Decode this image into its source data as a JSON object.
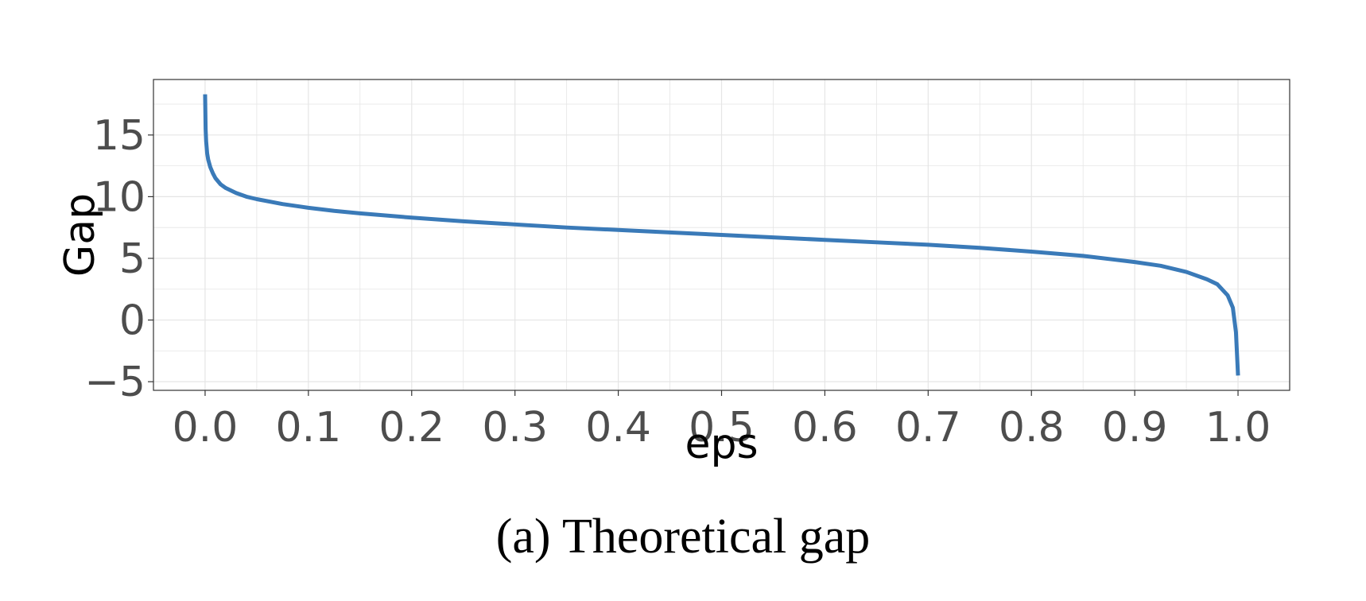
{
  "caption": "(a) Theoretical gap",
  "chart_data": {
    "type": "line",
    "xlabel": "eps",
    "ylabel": "Gap",
    "xlim": [
      -0.05,
      1.05
    ],
    "ylim": [
      -5.7,
      19.5
    ],
    "x_ticks": [
      0.0,
      0.1,
      0.2,
      0.3,
      0.4,
      0.5,
      0.6,
      0.7,
      0.8,
      0.9,
      1.0
    ],
    "x_tick_labels": [
      "0.0",
      "0.1",
      "0.2",
      "0.3",
      "0.4",
      "0.5",
      "0.6",
      "0.7",
      "0.8",
      "0.9",
      "1.0"
    ],
    "y_ticks": [
      -5,
      0,
      5,
      10,
      15
    ],
    "y_tick_labels": [
      "−5",
      "0",
      "5",
      "10",
      "15"
    ],
    "grid": true,
    "colors": {
      "line": "#3a7ab8",
      "grid": "#e5e5e5",
      "panel_border": "#333333"
    },
    "series": [
      {
        "x": [
          0.0,
          0.0005,
          0.001,
          0.002,
          0.003,
          0.005,
          0.0075,
          0.01,
          0.015,
          0.02,
          0.03,
          0.04,
          0.05,
          0.075,
          0.1,
          0.125,
          0.15,
          0.2,
          0.25,
          0.3,
          0.35,
          0.4,
          0.45,
          0.5,
          0.55,
          0.6,
          0.65,
          0.7,
          0.75,
          0.8,
          0.85,
          0.9,
          0.925,
          0.95,
          0.97,
          0.98,
          0.99,
          0.995,
          0.998,
          1.0
        ],
        "y": [
          18.3,
          15.5,
          14.5,
          13.5,
          13.0,
          12.4,
          11.9,
          11.5,
          11.0,
          10.7,
          10.3,
          10.0,
          9.8,
          9.4,
          9.1,
          8.85,
          8.65,
          8.3,
          8.0,
          7.75,
          7.5,
          7.3,
          7.1,
          6.9,
          6.7,
          6.5,
          6.3,
          6.1,
          5.85,
          5.55,
          5.2,
          4.7,
          4.4,
          3.9,
          3.3,
          2.9,
          2.0,
          1.0,
          -1.0,
          -4.5
        ]
      }
    ]
  }
}
